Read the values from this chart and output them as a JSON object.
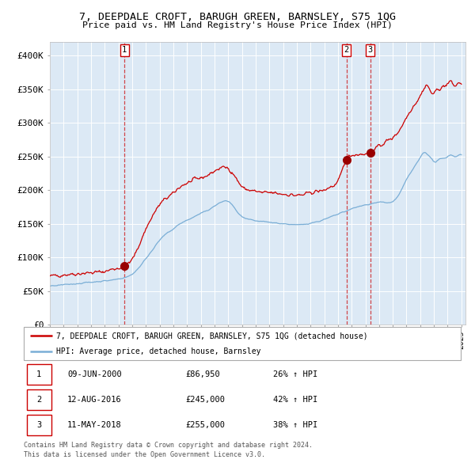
{
  "title": "7, DEEPDALE CROFT, BARUGH GREEN, BARNSLEY, S75 1QG",
  "subtitle": "Price paid vs. HM Land Registry's House Price Index (HPI)",
  "bg_color": "#dce9f5",
  "red_line_color": "#cc0000",
  "blue_line_color": "#7aaed6",
  "marker_color": "#990000",
  "ylim": [
    0,
    420000
  ],
  "yticks": [
    0,
    50000,
    100000,
    150000,
    200000,
    250000,
    300000,
    350000,
    400000
  ],
  "ytick_labels": [
    "£0",
    "£50K",
    "£100K",
    "£150K",
    "£200K",
    "£250K",
    "£300K",
    "£350K",
    "£400K"
  ],
  "legend_label_red": "7, DEEPDALE CROFT, BARUGH GREEN, BARNSLEY, S75 1QG (detached house)",
  "legend_label_blue": "HPI: Average price, detached house, Barnsley",
  "transactions": [
    {
      "num": 1,
      "date": "09-JUN-2000",
      "price": 86950,
      "price_str": "£86,950",
      "pct": "26%",
      "year": 2000.44
    },
    {
      "num": 2,
      "date": "12-AUG-2016",
      "price": 245000,
      "price_str": "£245,000",
      "pct": "42%",
      "year": 2016.62
    },
    {
      "num": 3,
      "date": "11-MAY-2018",
      "price": 255000,
      "price_str": "£255,000",
      "pct": "38%",
      "year": 2018.36
    }
  ],
  "footnote1": "Contains HM Land Registry data © Crown copyright and database right 2024.",
  "footnote2": "This data is licensed under the Open Government Licence v3.0.",
  "red_points": [
    [
      1995.0,
      72000
    ],
    [
      1995.5,
      73000
    ],
    [
      1996.0,
      74000
    ],
    [
      1996.5,
      75000
    ],
    [
      1997.0,
      75500
    ],
    [
      1997.5,
      76500
    ],
    [
      1998.0,
      77000
    ],
    [
      1998.5,
      78000
    ],
    [
      1999.0,
      79000
    ],
    [
      1999.5,
      82000
    ],
    [
      2000.0,
      84000
    ],
    [
      2000.44,
      86950
    ],
    [
      2001.0,
      97000
    ],
    [
      2001.5,
      118000
    ],
    [
      2002.0,
      142000
    ],
    [
      2002.5,
      162000
    ],
    [
      2003.0,
      178000
    ],
    [
      2003.5,
      188000
    ],
    [
      2004.0,
      195000
    ],
    [
      2004.5,
      205000
    ],
    [
      2005.0,
      210000
    ],
    [
      2005.5,
      215000
    ],
    [
      2006.0,
      218000
    ],
    [
      2006.5,
      222000
    ],
    [
      2007.0,
      228000
    ],
    [
      2007.5,
      233000
    ],
    [
      2008.0,
      232000
    ],
    [
      2008.5,
      220000
    ],
    [
      2009.0,
      205000
    ],
    [
      2009.5,
      200000
    ],
    [
      2010.0,
      198000
    ],
    [
      2010.5,
      196000
    ],
    [
      2011.0,
      196000
    ],
    [
      2011.5,
      195000
    ],
    [
      2012.0,
      194000
    ],
    [
      2012.5,
      193000
    ],
    [
      2013.0,
      192000
    ],
    [
      2013.5,
      193000
    ],
    [
      2014.0,
      196000
    ],
    [
      2014.5,
      198000
    ],
    [
      2015.0,
      200000
    ],
    [
      2015.5,
      205000
    ],
    [
      2016.0,
      212000
    ],
    [
      2016.5,
      240000
    ],
    [
      2016.62,
      245000
    ],
    [
      2017.0,
      252000
    ],
    [
      2017.5,
      253000
    ],
    [
      2018.0,
      254000
    ],
    [
      2018.36,
      255000
    ],
    [
      2018.5,
      258000
    ],
    [
      2019.0,
      265000
    ],
    [
      2019.5,
      272000
    ],
    [
      2020.0,
      278000
    ],
    [
      2020.5,
      290000
    ],
    [
      2021.0,
      308000
    ],
    [
      2021.5,
      325000
    ],
    [
      2022.0,
      340000
    ],
    [
      2022.3,
      352000
    ],
    [
      2022.5,
      356000
    ],
    [
      2022.7,
      348000
    ],
    [
      2023.0,
      344000
    ],
    [
      2023.3,
      350000
    ],
    [
      2023.5,
      352000
    ],
    [
      2023.8,
      355000
    ],
    [
      2024.0,
      358000
    ],
    [
      2024.3,
      360000
    ],
    [
      2024.5,
      355000
    ],
    [
      2024.7,
      357000
    ],
    [
      2025.0,
      358000
    ]
  ],
  "blue_points": [
    [
      1995.0,
      57000
    ],
    [
      1995.5,
      58000
    ],
    [
      1996.0,
      59000
    ],
    [
      1996.5,
      60000
    ],
    [
      1997.0,
      61000
    ],
    [
      1997.5,
      62000
    ],
    [
      1998.0,
      63000
    ],
    [
      1998.5,
      64000
    ],
    [
      1999.0,
      65000
    ],
    [
      1999.5,
      66000
    ],
    [
      2000.0,
      68000
    ],
    [
      2000.5,
      70000
    ],
    [
      2001.0,
      75000
    ],
    [
      2001.5,
      85000
    ],
    [
      2002.0,
      98000
    ],
    [
      2002.5,
      112000
    ],
    [
      2003.0,
      125000
    ],
    [
      2003.5,
      135000
    ],
    [
      2004.0,
      142000
    ],
    [
      2004.5,
      150000
    ],
    [
      2005.0,
      155000
    ],
    [
      2005.5,
      160000
    ],
    [
      2006.0,
      165000
    ],
    [
      2006.5,
      170000
    ],
    [
      2007.0,
      176000
    ],
    [
      2007.5,
      182000
    ],
    [
      2008.0,
      183000
    ],
    [
      2008.5,
      172000
    ],
    [
      2009.0,
      160000
    ],
    [
      2009.5,
      156000
    ],
    [
      2010.0,
      154000
    ],
    [
      2010.5,
      153000
    ],
    [
      2011.0,
      152000
    ],
    [
      2011.5,
      151000
    ],
    [
      2012.0,
      150000
    ],
    [
      2012.5,
      149000
    ],
    [
      2013.0,
      148000
    ],
    [
      2013.5,
      149000
    ],
    [
      2014.0,
      151000
    ],
    [
      2014.5,
      153000
    ],
    [
      2015.0,
      156000
    ],
    [
      2015.5,
      160000
    ],
    [
      2016.0,
      164000
    ],
    [
      2016.5,
      168000
    ],
    [
      2017.0,
      172000
    ],
    [
      2017.5,
      175000
    ],
    [
      2018.0,
      178000
    ],
    [
      2018.5,
      180000
    ],
    [
      2019.0,
      182000
    ],
    [
      2019.5,
      181000
    ],
    [
      2020.0,
      183000
    ],
    [
      2020.5,
      195000
    ],
    [
      2021.0,
      215000
    ],
    [
      2021.5,
      232000
    ],
    [
      2022.0,
      248000
    ],
    [
      2022.3,
      256000
    ],
    [
      2022.5,
      254000
    ],
    [
      2022.7,
      250000
    ],
    [
      2023.0,
      242000
    ],
    [
      2023.3,
      244000
    ],
    [
      2023.5,
      246000
    ],
    [
      2023.8,
      248000
    ],
    [
      2024.0,
      250000
    ],
    [
      2024.3,
      252000
    ],
    [
      2024.5,
      250000
    ],
    [
      2024.7,
      251000
    ],
    [
      2025.0,
      252000
    ]
  ]
}
